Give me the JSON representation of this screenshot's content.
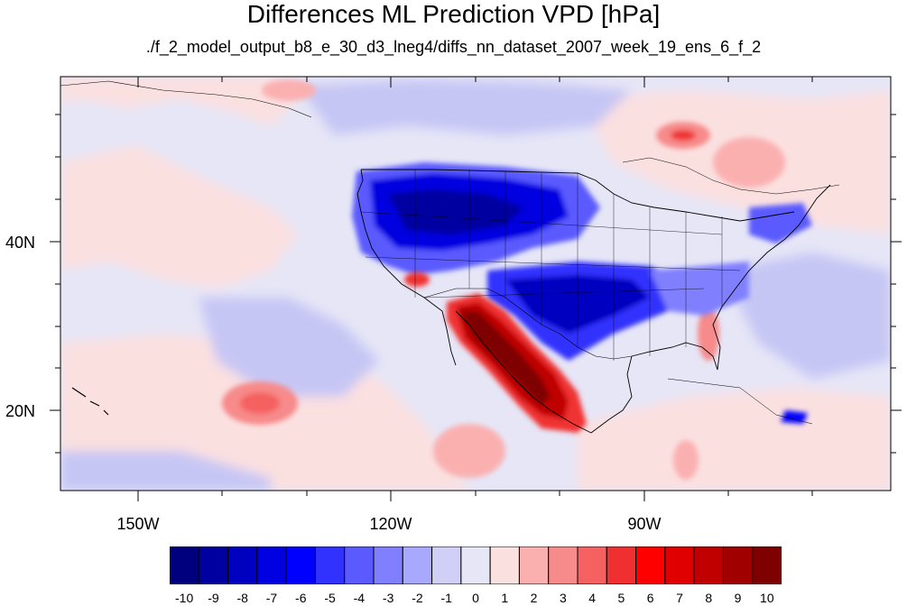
{
  "title": "Differences ML Prediction VPD [hPa]",
  "subtitle": "./f_2_model_output_b8_e_30_d3_lneg4/diffs_nn_dataset_2007_week_19_ens_6_f_2",
  "map": {
    "lat_labels": [
      "40N",
      "20N"
    ],
    "lon_labels": [
      "150W",
      "120W",
      "90W"
    ],
    "background_color": "#e6e6f7"
  },
  "colorbar": {
    "labels": [
      "-10",
      "-9",
      "-8",
      "-7",
      "-6",
      "-5",
      "-4",
      "-3",
      "-2",
      "-1",
      "0",
      "1",
      "2",
      "3",
      "4",
      "5",
      "6",
      "7",
      "8",
      "9",
      "10"
    ],
    "colors": [
      "#00007f",
      "#0000a0",
      "#0000c0",
      "#0000e0",
      "#0000ff",
      "#3232ff",
      "#5a5aff",
      "#8080ff",
      "#a8a8ff",
      "#d0d0f7",
      "#e6e6f7",
      "#fbe0e0",
      "#fbb0b0",
      "#f78a8a",
      "#f56060",
      "#f03030",
      "#ff0000",
      "#e00000",
      "#c00000",
      "#a00000",
      "#7f0000"
    ]
  }
}
